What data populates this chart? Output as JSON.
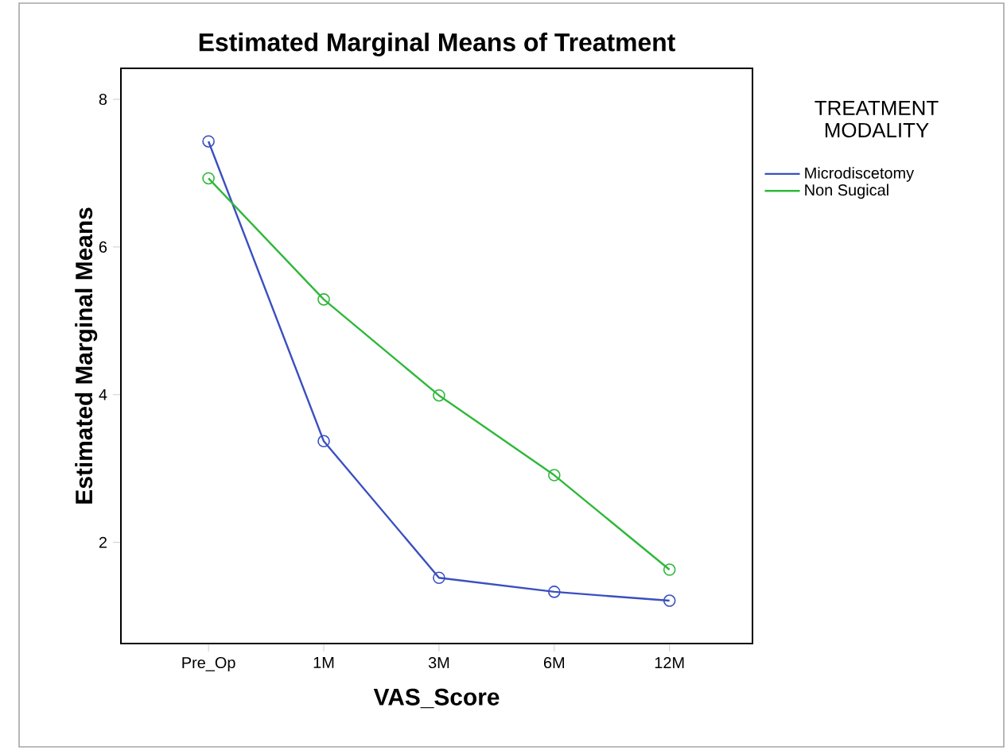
{
  "chart_data": {
    "type": "line",
    "title": "Estimated Marginal Means of Treatment",
    "xlabel": "VAS_Score",
    "ylabel": "Estimated Marginal Means",
    "legend_title": "TREATMENT MODALITY",
    "categories": [
      "Pre_Op",
      "1M",
      "3M",
      "6M",
      "12M"
    ],
    "series": [
      {
        "name": "Microdiscetomy",
        "color": "#3a4fc0",
        "values": [
          7.43,
          3.37,
          1.52,
          1.33,
          1.21
        ]
      },
      {
        "name": "Non Sugical",
        "color": "#2eb83a",
        "values": [
          6.93,
          5.29,
          3.99,
          2.91,
          1.63
        ]
      }
    ],
    "ylim": [
      0.63,
      8.42
    ],
    "yticks": [
      2,
      4,
      6,
      8
    ],
    "legend": "right",
    "marker": "circle",
    "line_style": "solid"
  }
}
